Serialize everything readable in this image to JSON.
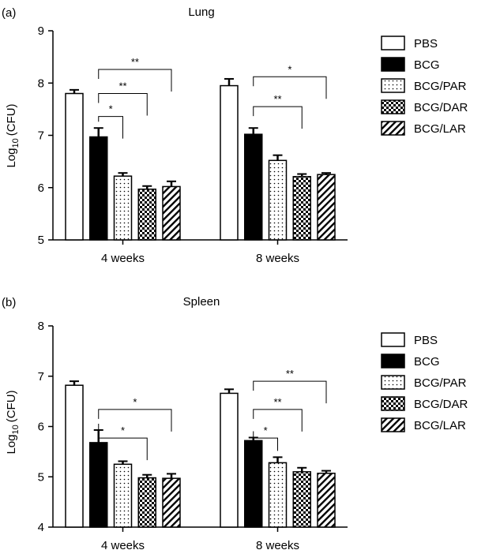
{
  "colors": {
    "ink": "#000000",
    "background": "#ffffff"
  },
  "chart_data": [
    {
      "type": "bar",
      "panel_label": "(a)",
      "title": "Lung",
      "ylabel_base": "Log",
      "ylabel_sub": "10",
      "ylabel_unit": "(CFU)",
      "ylim": [
        5,
        9
      ],
      "yticks": [
        "5",
        "6",
        "7",
        "8",
        "9"
      ],
      "categories": [
        "4 weeks",
        "8 weeks"
      ],
      "legend_position": "right",
      "series": [
        {
          "name": "PBS",
          "pattern": "white",
          "values": [
            7.8,
            7.95
          ],
          "errors": [
            0.07,
            0.13
          ]
        },
        {
          "name": "BCG",
          "pattern": "black",
          "values": [
            6.97,
            7.02
          ],
          "errors": [
            0.17,
            0.12
          ]
        },
        {
          "name": "BCG/PAR",
          "pattern": "dots",
          "values": [
            6.22,
            6.52
          ],
          "errors": [
            0.06,
            0.1
          ]
        },
        {
          "name": "BCG/DAR",
          "pattern": "checker",
          "values": [
            5.97,
            6.21
          ],
          "errors": [
            0.06,
            0.05
          ]
        },
        {
          "name": "BCG/LAR",
          "pattern": "hatch",
          "values": [
            6.02,
            6.25
          ],
          "errors": [
            0.1,
            0.03
          ]
        }
      ],
      "significance": [
        {
          "category": 0,
          "from": 1,
          "to": 2,
          "y": 7.36,
          "label": "*"
        },
        {
          "category": 0,
          "from": 1,
          "to": 3,
          "y": 7.8,
          "label": "**"
        },
        {
          "category": 0,
          "from": 1,
          "to": 4,
          "y": 8.26,
          "label": "**"
        },
        {
          "category": 1,
          "from": 1,
          "to": 3,
          "y": 7.55,
          "label": "**"
        },
        {
          "category": 1,
          "from": 1,
          "to": 4,
          "y": 8.12,
          "label": "*"
        }
      ]
    },
    {
      "type": "bar",
      "panel_label": "(b)",
      "title": "Spleen",
      "ylabel_base": "Log",
      "ylabel_sub": "10",
      "ylabel_unit": "(CFU)",
      "ylim": [
        4,
        8
      ],
      "yticks": [
        "4",
        "5",
        "6",
        "7",
        "8"
      ],
      "categories": [
        "4 weeks",
        "8 weeks"
      ],
      "legend_position": "right",
      "series": [
        {
          "name": "PBS",
          "pattern": "white",
          "values": [
            6.82,
            6.66
          ],
          "errors": [
            0.08,
            0.08
          ]
        },
        {
          "name": "BCG",
          "pattern": "black",
          "values": [
            5.68,
            5.72
          ],
          "errors": [
            0.25,
            0.06
          ]
        },
        {
          "name": "BCG/PAR",
          "pattern": "dots",
          "values": [
            5.25,
            5.28
          ],
          "errors": [
            0.06,
            0.11
          ]
        },
        {
          "name": "BCG/DAR",
          "pattern": "checker",
          "values": [
            4.98,
            5.1
          ],
          "errors": [
            0.06,
            0.08
          ]
        },
        {
          "name": "BCG/LAR",
          "pattern": "hatch",
          "values": [
            4.97,
            5.07
          ],
          "errors": [
            0.09,
            0.05
          ]
        }
      ],
      "significance": [
        {
          "category": 0,
          "from": 1,
          "to": 3,
          "y": 5.77,
          "label": "*"
        },
        {
          "category": 0,
          "from": 1,
          "to": 4,
          "y": 6.34,
          "label": "*"
        },
        {
          "category": 1,
          "from": 1,
          "to": 2,
          "y": 5.77,
          "label": "*"
        },
        {
          "category": 1,
          "from": 1,
          "to": 3,
          "y": 6.34,
          "label": "**"
        },
        {
          "category": 1,
          "from": 1,
          "to": 4,
          "y": 6.9,
          "label": "**"
        }
      ]
    }
  ]
}
